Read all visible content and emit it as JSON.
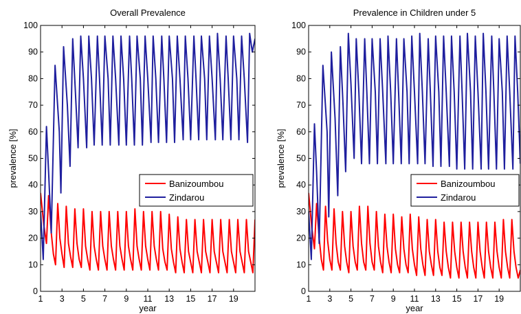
{
  "chart_data": [
    {
      "type": "line",
      "title": "Overall Prevalence",
      "xlabel": "year",
      "ylabel": "prevalence [%]",
      "xlim": [
        1,
        21
      ],
      "ylim": [
        0,
        100
      ],
      "x_ticks": [
        1,
        3,
        5,
        7,
        9,
        11,
        13,
        15,
        17,
        19
      ],
      "y_ticks": [
        0,
        10,
        20,
        30,
        40,
        50,
        60,
        70,
        80,
        90,
        100
      ],
      "legend_position": "center-right",
      "grid": false,
      "series": [
        {
          "name": "Banizoumbou",
          "color": "#ff0000",
          "x": [
            1.0,
            1.3,
            1.55,
            1.75,
            2.0,
            2.2,
            2.4,
            2.6,
            2.8,
            3.0,
            3.2,
            3.4,
            3.6,
            3.8,
            4.0,
            4.2,
            4.4,
            4.6,
            4.8,
            5.0,
            5.2,
            5.4,
            5.6,
            5.8,
            6.0,
            6.2,
            6.4,
            6.6,
            6.8,
            7.0,
            7.2,
            7.4,
            7.6,
            7.8,
            8.0,
            8.2,
            8.4,
            8.6,
            8.8,
            9.0,
            9.2,
            9.4,
            9.6,
            9.8,
            10.0,
            10.2,
            10.4,
            10.6,
            10.8,
            11.0,
            11.2,
            11.4,
            11.6,
            11.8,
            12.0,
            12.2,
            12.4,
            12.6,
            12.8,
            13.0,
            13.2,
            13.4,
            13.6,
            13.8,
            14.0,
            14.2,
            14.4,
            14.6,
            14.8,
            15.0,
            15.2,
            15.4,
            15.6,
            15.8,
            16.0,
            16.2,
            16.4,
            16.6,
            16.8,
            17.0,
            17.2,
            17.4,
            17.6,
            17.8,
            18.0,
            18.2,
            18.4,
            18.6,
            18.8,
            19.0,
            19.2,
            19.4,
            19.6,
            19.8,
            20.0,
            20.2,
            20.4,
            20.6,
            20.8,
            21.0
          ],
          "y": [
            37,
            25,
            18,
            36,
            22,
            14,
            10,
            33,
            20,
            14,
            9,
            32,
            18,
            13,
            9,
            31,
            18,
            12,
            9,
            31,
            17,
            12,
            8,
            30,
            17,
            12,
            8,
            30,
            17,
            12,
            8,
            30,
            17,
            12,
            8,
            30,
            17,
            12,
            8,
            30,
            17,
            12,
            8,
            31,
            17,
            12,
            8,
            30,
            17,
            12,
            8,
            30,
            17,
            12,
            8,
            30,
            16,
            11,
            8,
            29,
            16,
            11,
            7,
            28,
            16,
            11,
            7,
            27,
            15,
            11,
            7,
            27,
            15,
            11,
            7,
            27,
            15,
            11,
            7,
            27,
            15,
            11,
            7,
            27,
            15,
            11,
            7,
            27,
            15,
            11,
            7,
            27,
            15,
            11,
            7,
            27,
            15,
            11,
            7,
            27
          ]
        },
        {
          "name": "Zindarou",
          "color": "#1f1f9e",
          "x": [
            1.0,
            1.25,
            1.55,
            1.75,
            2.0,
            2.35,
            2.75,
            2.9,
            3.15,
            3.5,
            3.75,
            4.0,
            4.25,
            4.5,
            4.75,
            5.0,
            5.3,
            5.5,
            5.75,
            6.0,
            6.3,
            6.5,
            6.75,
            7.0,
            7.3,
            7.5,
            7.75,
            8.0,
            8.3,
            8.5,
            8.75,
            9.0,
            9.3,
            9.5,
            9.75,
            10.0,
            10.3,
            10.5,
            10.75,
            11.0,
            11.3,
            11.5,
            11.75,
            12.0,
            12.3,
            12.5,
            12.75,
            13.0,
            13.3,
            13.5,
            13.75,
            14.0,
            14.3,
            14.5,
            14.75,
            15.0,
            15.3,
            15.5,
            15.75,
            16.0,
            16.3,
            16.5,
            16.75,
            17.0,
            17.3,
            17.5,
            17.75,
            18.0,
            18.3,
            18.5,
            18.75,
            19.0,
            19.3,
            19.5,
            19.75,
            20.0,
            20.3,
            20.5,
            20.75,
            21.0
          ],
          "y": [
            30,
            12,
            62,
            45,
            22,
            85,
            60,
            37,
            92,
            70,
            47,
            95,
            75,
            54,
            96,
            80,
            54,
            96,
            80,
            55,
            96,
            80,
            55,
            96,
            80,
            55,
            96,
            80,
            55,
            96,
            80,
            55,
            96,
            80,
            55,
            96,
            80,
            55,
            96,
            80,
            56,
            96,
            80,
            56,
            96,
            80,
            56,
            96,
            80,
            56,
            96,
            80,
            57,
            96,
            80,
            57,
            96,
            80,
            57,
            96,
            80,
            57,
            96,
            80,
            57,
            97,
            80,
            57,
            96,
            80,
            57,
            96,
            80,
            57,
            96,
            80,
            56,
            97,
            90,
            95
          ]
        }
      ]
    },
    {
      "type": "line",
      "title": "Prevalence in Children under 5",
      "xlabel": "year",
      "ylabel": "prevalence [%]",
      "xlim": [
        1,
        21
      ],
      "ylim": [
        0,
        100
      ],
      "x_ticks": [
        1,
        3,
        5,
        7,
        9,
        11,
        13,
        15,
        17,
        19
      ],
      "y_ticks": [
        0,
        10,
        20,
        30,
        40,
        50,
        60,
        70,
        80,
        90,
        100
      ],
      "legend_position": "center-right",
      "grid": false,
      "series": [
        {
          "name": "Banizoumbou",
          "color": "#ff0000",
          "x": [
            1.0,
            1.3,
            1.55,
            1.75,
            2.0,
            2.2,
            2.4,
            2.6,
            2.8,
            3.0,
            3.2,
            3.4,
            3.6,
            3.8,
            4.0,
            4.2,
            4.4,
            4.6,
            4.8,
            5.0,
            5.2,
            5.4,
            5.6,
            5.8,
            6.0,
            6.2,
            6.4,
            6.6,
            6.8,
            7.0,
            7.2,
            7.4,
            7.6,
            7.8,
            8.0,
            8.2,
            8.4,
            8.6,
            8.8,
            9.0,
            9.2,
            9.4,
            9.6,
            9.8,
            10.0,
            10.2,
            10.4,
            10.6,
            10.8,
            11.0,
            11.2,
            11.4,
            11.6,
            11.8,
            12.0,
            12.2,
            12.4,
            12.6,
            12.8,
            13.0,
            13.2,
            13.4,
            13.6,
            13.8,
            14.0,
            14.2,
            14.4,
            14.6,
            14.8,
            15.0,
            15.2,
            15.4,
            15.6,
            15.8,
            16.0,
            16.2,
            16.4,
            16.6,
            16.8,
            17.0,
            17.2,
            17.4,
            17.6,
            17.8,
            18.0,
            18.2,
            18.4,
            18.6,
            18.8,
            19.0,
            19.2,
            19.4,
            19.6,
            19.8,
            20.0,
            20.2,
            20.4,
            20.6,
            20.8,
            21.0
          ],
          "y": [
            37,
            24,
            16,
            33,
            20,
            12,
            8,
            32,
            19,
            12,
            8,
            31,
            18,
            11,
            8,
            30,
            17,
            11,
            7,
            30,
            17,
            11,
            8,
            32,
            18,
            11,
            8,
            32,
            18,
            11,
            8,
            30,
            17,
            11,
            7,
            29,
            17,
            11,
            7,
            29,
            16,
            10,
            7,
            28,
            16,
            10,
            7,
            29,
            16,
            10,
            6,
            28,
            16,
            10,
            6,
            27,
            15,
            10,
            6,
            27,
            15,
            9,
            6,
            26,
            15,
            9,
            5,
            26,
            15,
            9,
            5,
            26,
            15,
            9,
            5,
            26,
            15,
            9,
            5,
            26,
            15,
            9,
            5,
            26,
            15,
            9,
            5,
            26,
            15,
            9,
            5,
            27,
            15,
            9,
            5,
            27,
            15,
            9,
            5,
            8
          ]
        },
        {
          "name": "Zindarou",
          "color": "#1f1f9e",
          "x": [
            1.0,
            1.25,
            1.55,
            1.75,
            2.0,
            2.35,
            2.75,
            2.9,
            3.15,
            3.5,
            3.75,
            4.0,
            4.25,
            4.5,
            4.75,
            5.0,
            5.3,
            5.5,
            5.75,
            6.0,
            6.3,
            6.5,
            6.75,
            7.0,
            7.3,
            7.5,
            7.75,
            8.0,
            8.3,
            8.5,
            8.75,
            9.0,
            9.3,
            9.5,
            9.75,
            10.0,
            10.3,
            10.5,
            10.75,
            11.0,
            11.3,
            11.5,
            11.75,
            12.0,
            12.3,
            12.5,
            12.75,
            13.0,
            13.3,
            13.5,
            13.75,
            14.0,
            14.3,
            14.5,
            14.75,
            15.0,
            15.3,
            15.5,
            15.75,
            16.0,
            16.3,
            16.5,
            16.75,
            17.0,
            17.3,
            17.5,
            17.75,
            18.0,
            18.3,
            18.5,
            18.75,
            19.0,
            19.3,
            19.5,
            19.75,
            20.0,
            20.3,
            20.5,
            20.75,
            21.0
          ],
          "y": [
            30,
            12,
            63,
            45,
            18,
            85,
            60,
            28,
            90,
            65,
            36,
            92,
            70,
            45,
            97,
            78,
            50,
            95,
            75,
            48,
            95,
            75,
            48,
            95,
            75,
            48,
            95,
            75,
            48,
            96,
            75,
            48,
            95,
            75,
            48,
            95,
            75,
            48,
            96,
            75,
            48,
            97,
            75,
            48,
            95,
            75,
            47,
            96,
            75,
            47,
            96,
            75,
            47,
            96,
            75,
            46,
            96,
            75,
            46,
            97,
            75,
            46,
            96,
            75,
            46,
            97,
            75,
            46,
            96,
            75,
            46,
            95,
            75,
            46,
            96,
            75,
            46,
            96,
            75,
            48
          ]
        }
      ]
    }
  ]
}
